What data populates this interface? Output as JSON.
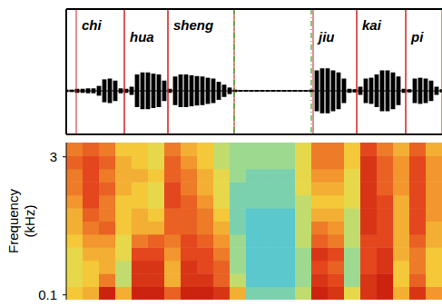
{
  "chart_data": [
    {
      "type": "waveform",
      "x": [
        0,
        6,
        12,
        18,
        24,
        30,
        36,
        42,
        48,
        54,
        60,
        66,
        72,
        78,
        84,
        90,
        96,
        102,
        108,
        114,
        120,
        126,
        132,
        138,
        144,
        150,
        156,
        162,
        168,
        174,
        180,
        186,
        192,
        198,
        204,
        210,
        216,
        222,
        228,
        234,
        240,
        246,
        252,
        258,
        264,
        270,
        276,
        282,
        288,
        294,
        300,
        306,
        312,
        318,
        324,
        330,
        336,
        342,
        348,
        354,
        360,
        366,
        372,
        378,
        384,
        390,
        396,
        402,
        408,
        414
      ],
      "values": [
        0.03,
        0.03,
        0.05,
        0.05,
        0.06,
        0.06,
        0.12,
        0.28,
        0.3,
        0.25,
        0.06,
        0.05,
        0.1,
        0.4,
        0.45,
        0.45,
        0.42,
        0.4,
        0.25,
        0.05,
        0.35,
        0.4,
        0.4,
        0.38,
        0.36,
        0.35,
        0.32,
        0.3,
        0.22,
        0.15,
        0.08,
        0.03,
        0.02,
        0.02,
        0.02,
        0.02,
        0.02,
        0.02,
        0.02,
        0.02,
        0.02,
        0.02,
        0.02,
        0.02,
        0.02,
        0.03,
        0.5,
        0.55,
        0.55,
        0.5,
        0.45,
        0.3,
        0.05,
        0.04,
        0.1,
        0.3,
        0.32,
        0.4,
        0.5,
        0.5,
        0.45,
        0.35,
        0.05,
        0.04,
        0.3,
        0.32,
        0.3,
        0.25,
        0.1,
        0.04
      ],
      "xlim": [
        0,
        414
      ],
      "ylim": [
        -1,
        1
      ],
      "tick_labels": false,
      "color": "#000000",
      "segments": [
        {
          "label": "chi",
          "start": 11,
          "end": 64
        },
        {
          "label": "hua",
          "start": 64,
          "end": 112
        },
        {
          "label": "sheng",
          "start": 112,
          "end": 185
        },
        {
          "label": "jiu",
          "start": 272,
          "end": 320
        },
        {
          "label": "kai",
          "start": 320,
          "end": 374
        },
        {
          "label": "pi",
          "start": 374,
          "end": 414
        }
      ],
      "pauses": [
        {
          "start": 185,
          "end": 270
        }
      ]
    },
    {
      "type": "heatmap",
      "y_label": "Frequency (kHz)",
      "xlim": [
        0,
        414
      ],
      "ylim": [
        0,
        3.3
      ],
      "yticks": [
        0.1,
        3
      ],
      "tick_labels": "y",
      "x_edges": [
        0,
        18,
        36,
        54,
        72,
        90,
        108,
        126,
        144,
        162,
        180,
        198,
        216,
        234,
        252,
        270,
        288,
        306,
        324,
        342,
        360,
        378,
        396,
        414
      ],
      "y_edges": [
        0,
        0.275,
        0.55,
        0.825,
        1.1,
        1.375,
        1.65,
        1.925,
        2.2,
        2.475,
        2.75,
        3.025,
        3.3
      ],
      "color_range": [
        0,
        1
      ],
      "cells": [
        [
          0.55,
          0.5,
          0.5,
          0.5,
          0.55,
          0.6,
          0.6,
          0.65,
          0.7,
          0.7,
          0.75,
          0.7
        ],
        [
          0.6,
          0.55,
          0.55,
          0.6,
          0.65,
          0.7,
          0.75,
          0.8,
          0.8,
          0.8,
          0.8,
          0.75
        ],
        [
          0.9,
          0.7,
          0.6,
          0.6,
          0.65,
          0.75,
          0.7,
          0.7,
          0.75,
          0.7,
          0.75,
          0.7
        ],
        [
          0.6,
          0.45,
          0.45,
          0.5,
          0.5,
          0.55,
          0.55,
          0.55,
          0.6,
          0.6,
          0.6,
          0.55
        ],
        [
          0.9,
          0.85,
          0.85,
          0.8,
          0.7,
          0.6,
          0.6,
          0.55,
          0.55,
          0.6,
          0.55,
          0.55
        ],
        [
          0.9,
          0.85,
          0.85,
          0.8,
          0.75,
          0.6,
          0.55,
          0.5,
          0.5,
          0.55,
          0.5,
          0.5
        ],
        [
          0.75,
          0.6,
          0.6,
          0.65,
          0.7,
          0.75,
          0.75,
          0.8,
          0.8,
          0.75,
          0.75,
          0.7
        ],
        [
          0.9,
          0.85,
          0.85,
          0.8,
          0.8,
          0.75,
          0.75,
          0.75,
          0.7,
          0.7,
          0.65,
          0.6
        ],
        [
          0.9,
          0.85,
          0.8,
          0.8,
          0.75,
          0.7,
          0.7,
          0.65,
          0.6,
          0.6,
          0.55,
          0.55
        ],
        [
          0.85,
          0.75,
          0.75,
          0.7,
          0.65,
          0.6,
          0.55,
          0.5,
          0.5,
          0.5,
          0.45,
          0.45
        ],
        [
          0.6,
          0.45,
          0.4,
          0.4,
          0.4,
          0.35,
          0.35,
          0.35,
          0.35,
          0.4,
          0.4,
          0.4
        ],
        [
          0.35,
          0.3,
          0.3,
          0.3,
          0.3,
          0.3,
          0.3,
          0.35,
          0.35,
          0.35,
          0.4,
          0.4
        ],
        [
          0.35,
          0.3,
          0.3,
          0.3,
          0.3,
          0.3,
          0.3,
          0.35,
          0.35,
          0.35,
          0.4,
          0.4
        ],
        [
          0.35,
          0.3,
          0.3,
          0.3,
          0.3,
          0.3,
          0.3,
          0.35,
          0.35,
          0.35,
          0.4,
          0.4
        ],
        [
          0.45,
          0.4,
          0.4,
          0.4,
          0.45,
          0.45,
          0.45,
          0.45,
          0.5,
          0.5,
          0.5,
          0.5
        ],
        [
          0.9,
          0.85,
          0.8,
          0.85,
          0.75,
          0.7,
          0.6,
          0.55,
          0.6,
          0.65,
          0.7,
          0.7
        ],
        [
          0.85,
          0.8,
          0.75,
          0.8,
          0.7,
          0.65,
          0.6,
          0.55,
          0.6,
          0.65,
          0.7,
          0.7
        ],
        [
          0.5,
          0.4,
          0.4,
          0.4,
          0.45,
          0.45,
          0.45,
          0.5,
          0.5,
          0.5,
          0.55,
          0.55
        ],
        [
          0.85,
          0.85,
          0.8,
          0.8,
          0.8,
          0.85,
          0.85,
          0.85,
          0.85,
          0.85,
          0.85,
          0.8
        ],
        [
          0.9,
          0.9,
          0.85,
          0.85,
          0.8,
          0.8,
          0.8,
          0.8,
          0.75,
          0.75,
          0.75,
          0.7
        ],
        [
          0.6,
          0.55,
          0.55,
          0.6,
          0.6,
          0.6,
          0.6,
          0.6,
          0.65,
          0.65,
          0.65,
          0.6
        ],
        [
          0.85,
          0.75,
          0.7,
          0.7,
          0.75,
          0.8,
          0.8,
          0.8,
          0.8,
          0.8,
          0.8,
          0.75
        ],
        [
          0.65,
          0.55,
          0.55,
          0.55,
          0.6,
          0.6,
          0.65,
          0.65,
          0.65,
          0.65,
          0.65,
          0.6
        ]
      ]
    }
  ]
}
